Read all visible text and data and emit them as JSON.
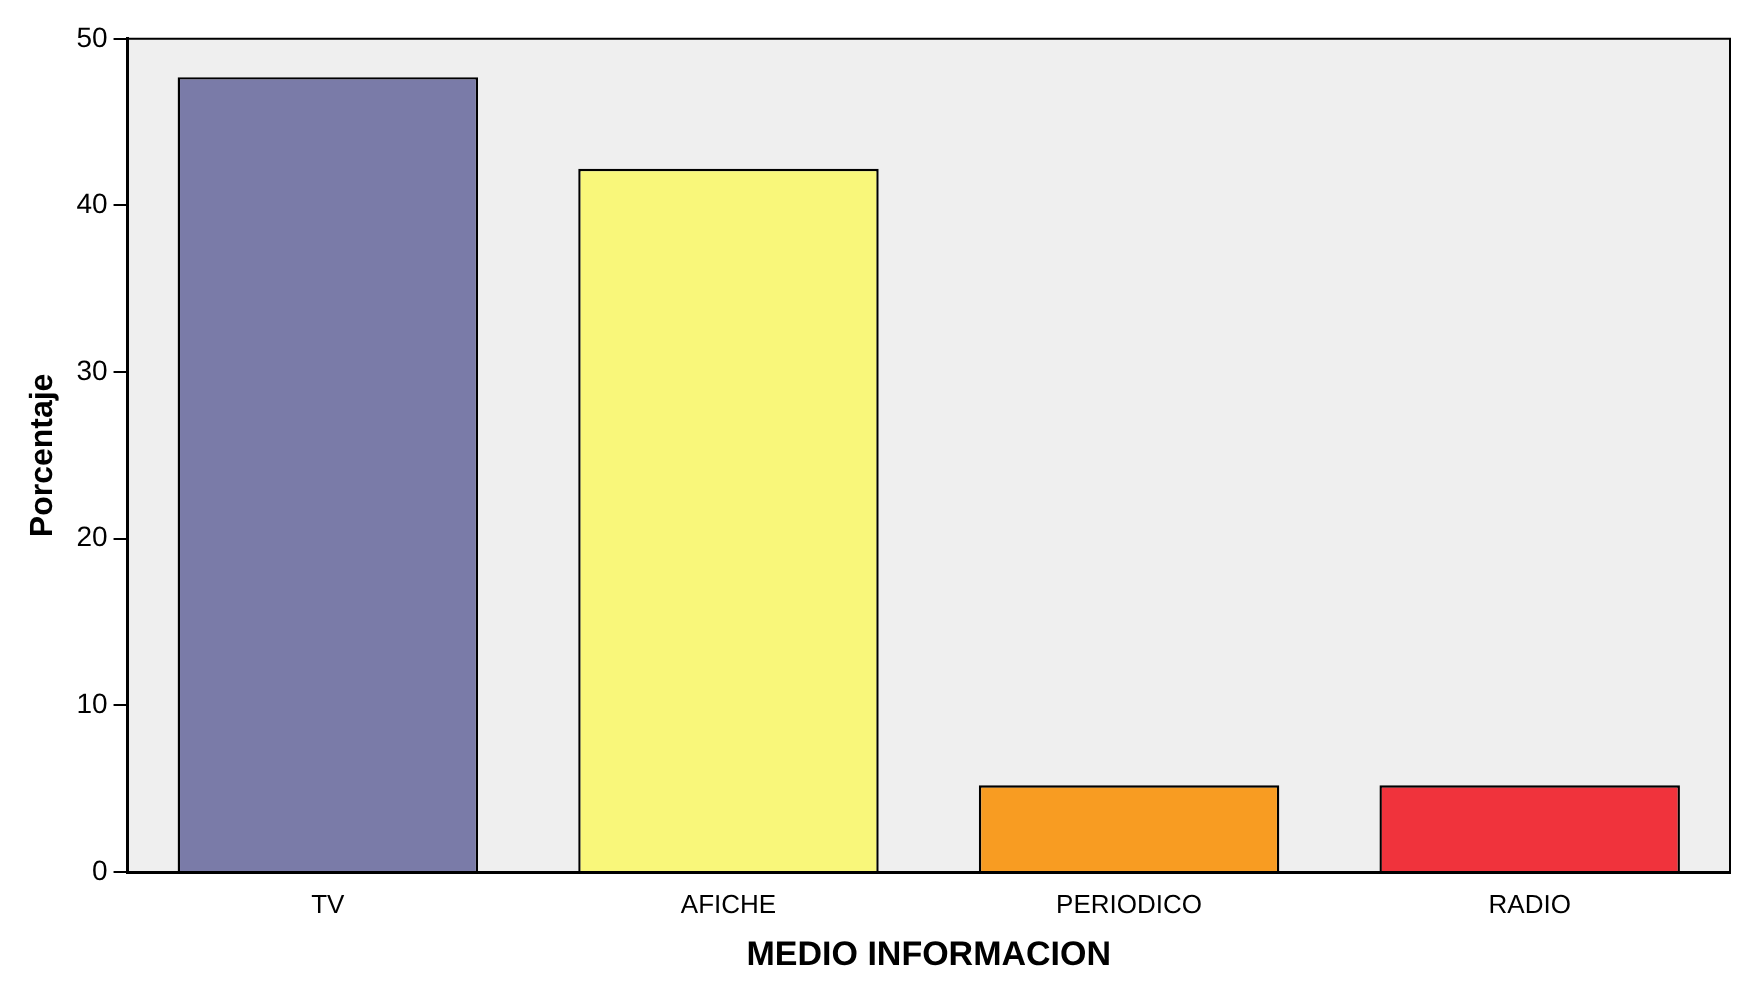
{
  "chart_data": {
    "type": "bar",
    "xlabel": "MEDIO INFORMACION",
    "ylabel": "Porcentaje",
    "categories": [
      "TV",
      "AFICHE",
      "PERIODICO",
      "RADIO"
    ],
    "values": [
      47.7,
      42.2,
      5.2,
      5.2
    ],
    "colors": [
      "#7a7ba8",
      "#f9f77a",
      "#f89c22",
      "#f0333c"
    ],
    "ylim": [
      0,
      50
    ],
    "yticks": [
      0,
      10,
      20,
      30,
      40,
      50
    ],
    "grid": false,
    "legend": false
  }
}
